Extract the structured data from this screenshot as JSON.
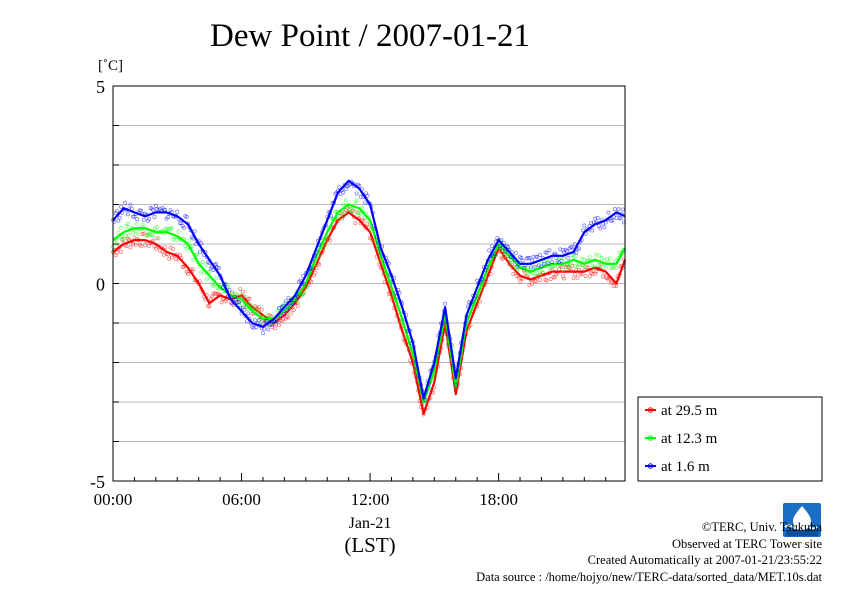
{
  "chart_data": {
    "type": "line",
    "title": "Dew Point / 2007-01-21",
    "ylabel": "[˚C]",
    "ylim": [
      -5,
      5
    ],
    "yticks": [
      5,
      0,
      -5
    ],
    "yminor_step": 1,
    "xlim": [
      0,
      23.9
    ],
    "x_tick_hours": [
      0,
      6,
      12,
      18
    ],
    "x_tick_labels": [
      "00:00",
      "06:00",
      "12:00",
      "18:00"
    ],
    "x_date_label": "Jan-21",
    "x_unit_label": "(LST)",
    "grid": true,
    "legend": "bottom-right",
    "series": [
      {
        "name": "at 29.5 m",
        "color": "#ff0000",
        "x": [
          0,
          0.5,
          1,
          1.5,
          2,
          2.5,
          3,
          3.5,
          4,
          4.5,
          5,
          5.5,
          6,
          6.5,
          7,
          7.5,
          8,
          8.5,
          9,
          9.5,
          10,
          10.5,
          11,
          11.5,
          12,
          12.5,
          13,
          13.5,
          14,
          14.5,
          15,
          15.5,
          16,
          16.5,
          17,
          17.5,
          18,
          18.5,
          19,
          19.5,
          20,
          20.5,
          21,
          21.5,
          22,
          22.5,
          23,
          23.5,
          23.9
        ],
        "values": [
          0.8,
          1.0,
          1.1,
          1.1,
          1.0,
          0.8,
          0.7,
          0.4,
          0.0,
          -0.5,
          -0.3,
          -0.4,
          -0.3,
          -0.6,
          -0.8,
          -1.0,
          -0.8,
          -0.5,
          -0.1,
          0.5,
          1.1,
          1.6,
          1.8,
          1.6,
          1.3,
          0.5,
          -0.3,
          -1.2,
          -2.0,
          -3.3,
          -2.5,
          -1.0,
          -2.8,
          -1.2,
          -0.5,
          0.2,
          0.9,
          0.5,
          0.2,
          0.1,
          0.2,
          0.3,
          0.3,
          0.3,
          0.3,
          0.4,
          0.3,
          0.0,
          0.6
        ]
      },
      {
        "name": "at 12.3 m",
        "color": "#00ff00",
        "x": [
          0,
          0.5,
          1,
          1.5,
          2,
          2.5,
          3,
          3.5,
          4,
          4.5,
          5,
          5.5,
          6,
          6.5,
          7,
          7.5,
          8,
          8.5,
          9,
          9.5,
          10,
          10.5,
          11,
          11.5,
          12,
          12.5,
          13,
          13.5,
          14,
          14.5,
          15,
          15.5,
          16,
          16.5,
          17,
          17.5,
          18,
          18.5,
          19,
          19.5,
          20,
          20.5,
          21,
          21.5,
          22,
          22.5,
          23,
          23.5,
          23.9
        ],
        "values": [
          1.1,
          1.3,
          1.4,
          1.4,
          1.3,
          1.3,
          1.2,
          1.0,
          0.5,
          0.2,
          -0.1,
          -0.3,
          -0.4,
          -0.7,
          -0.9,
          -0.9,
          -0.7,
          -0.4,
          0.0,
          0.7,
          1.3,
          1.8,
          2.0,
          1.9,
          1.6,
          0.7,
          -0.1,
          -0.9,
          -1.8,
          -3.0,
          -2.2,
          -0.8,
          -2.6,
          -1.0,
          -0.3,
          0.4,
          1.0,
          0.7,
          0.4,
          0.3,
          0.4,
          0.5,
          0.5,
          0.6,
          0.5,
          0.6,
          0.5,
          0.5,
          0.9
        ]
      },
      {
        "name": "at 1.6 m",
        "color": "#0000ff",
        "x": [
          0,
          0.5,
          1,
          1.5,
          2,
          2.5,
          3,
          3.5,
          4,
          4.5,
          5,
          5.5,
          6,
          6.5,
          7,
          7.5,
          8,
          8.5,
          9,
          9.5,
          10,
          10.5,
          11,
          11.5,
          12,
          12.5,
          13,
          13.5,
          14,
          14.5,
          15,
          15.5,
          16,
          16.5,
          17,
          17.5,
          18,
          18.5,
          19,
          19.5,
          20,
          20.5,
          21,
          21.5,
          22,
          22.5,
          23,
          23.5,
          23.9
        ],
        "values": [
          1.6,
          1.9,
          1.8,
          1.7,
          1.8,
          1.8,
          1.7,
          1.5,
          1.0,
          0.6,
          0.2,
          -0.4,
          -0.7,
          -1.0,
          -1.1,
          -0.9,
          -0.6,
          -0.3,
          0.2,
          0.9,
          1.6,
          2.3,
          2.6,
          2.4,
          2.0,
          0.9,
          0.2,
          -0.6,
          -1.5,
          -2.9,
          -2.0,
          -0.6,
          -2.4,
          -0.8,
          -0.1,
          0.6,
          1.1,
          0.8,
          0.5,
          0.5,
          0.6,
          0.7,
          0.7,
          0.8,
          1.3,
          1.5,
          1.6,
          1.8,
          1.7
        ]
      }
    ]
  },
  "credits": {
    "copyright": "©TERC, Univ. Tsukuba",
    "site": "Observed at TERC Tower site",
    "created": "Created Automatically at 2007-01-21/23:55:22",
    "source": "Data source : /home/hojyo/new/TERC-data/sorted_data/MET.10s.dat"
  }
}
